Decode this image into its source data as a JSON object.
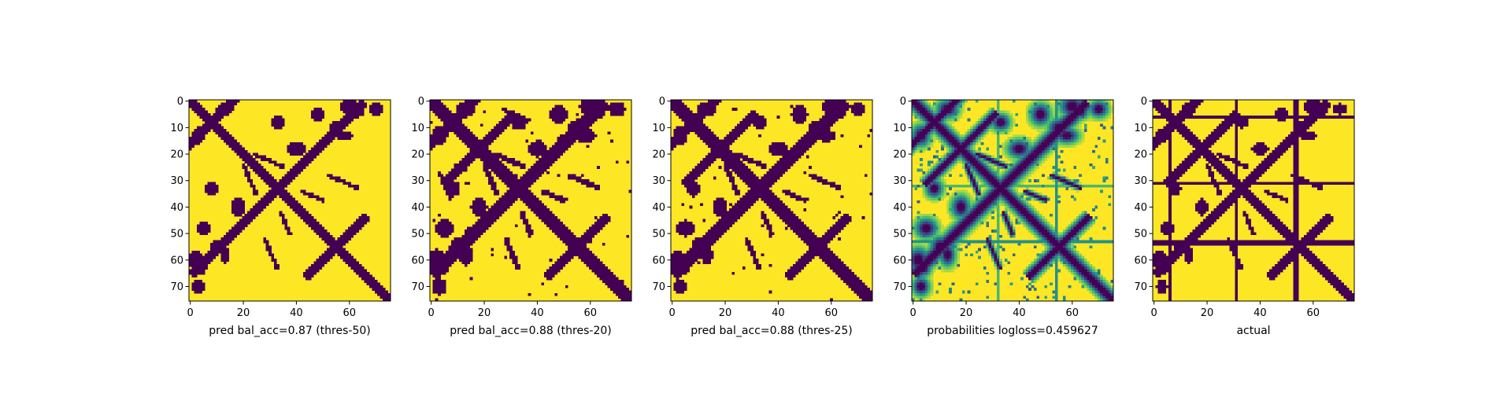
{
  "chart_data": [
    {
      "type": "heatmap",
      "title": "",
      "xlabel": "pred bal_acc=0.87 (thres-50)",
      "ylabel": "",
      "grid_size": 76,
      "xticks": [
        0,
        20,
        40,
        60
      ],
      "yticks": [
        0,
        10,
        20,
        30,
        40,
        50,
        60,
        70
      ],
      "value_type": "binary",
      "colormap": "viridis",
      "diagonal_width": 2.2,
      "arms": [
        [
          33,
          0,
          3.2
        ],
        [
          55,
          45,
          2.4
        ],
        [
          8,
          0,
          2.6
        ]
      ],
      "blobs": [
        [
          13,
          3,
          2.6,
          2.2
        ],
        [
          8,
          33,
          2.0,
          2.2
        ],
        [
          18,
          40,
          2.2,
          2.8
        ],
        [
          10,
          55,
          2.0,
          2.5
        ],
        [
          4,
          63,
          1.8,
          2.0
        ],
        [
          48,
          5,
          2.0,
          2.5
        ],
        [
          58,
          13,
          2.8,
          1.6
        ],
        [
          60,
          2,
          3.0,
          2.6
        ],
        [
          70,
          3,
          2.2,
          2.0
        ]
      ],
      "curves": [
        [
          22,
          30,
          2,
          1.0
        ],
        [
          38,
          44,
          4,
          1.0
        ],
        [
          40,
          48,
          12,
          1.0
        ]
      ],
      "stripes": [],
      "noise": 0.0
    },
    {
      "type": "heatmap",
      "title": "",
      "xlabel": "pred bal_acc=0.88 (thres-20)",
      "ylabel": "",
      "grid_size": 76,
      "xticks": [
        0,
        20,
        40,
        60
      ],
      "yticks": [
        0,
        10,
        20,
        30,
        40,
        50,
        60,
        70
      ],
      "value_type": "binary",
      "colormap": "viridis",
      "diagonal_width": 2.8,
      "arms": [
        [
          33,
          0,
          3.8
        ],
        [
          55,
          45,
          3.0
        ],
        [
          8,
          0,
          3.0
        ],
        [
          18,
          6,
          3.0
        ]
      ],
      "blobs": [
        [
          13,
          3,
          3.0,
          2.6
        ],
        [
          8,
          33,
          2.4,
          2.6
        ],
        [
          18,
          40,
          2.6,
          3.2
        ],
        [
          10,
          55,
          2.6,
          3.0
        ],
        [
          4,
          63,
          2.0,
          2.4
        ],
        [
          48,
          5,
          3.0,
          3.0
        ],
        [
          58,
          13,
          3.4,
          2.2
        ],
        [
          60,
          2,
          3.4,
          3.0
        ],
        [
          70,
          3,
          2.6,
          2.4
        ],
        [
          50,
          14,
          2.0,
          1.6
        ]
      ],
      "curves": [
        [
          22,
          30,
          2,
          1.2
        ],
        [
          38,
          44,
          4,
          1.2
        ],
        [
          40,
          48,
          12,
          1.2
        ],
        [
          15,
          22,
          12,
          1.0
        ]
      ],
      "stripes": [
        [
          53,
          "h",
          0.5
        ],
        [
          54,
          "v",
          0.5
        ]
      ],
      "noise": 0.02
    },
    {
      "type": "heatmap",
      "title": "",
      "xlabel": "pred bal_acc=0.88 (thres-25)",
      "ylabel": "",
      "grid_size": 76,
      "xticks": [
        0,
        20,
        40,
        60
      ],
      "yticks": [
        0,
        10,
        20,
        30,
        40,
        50,
        60,
        70
      ],
      "value_type": "binary",
      "colormap": "viridis",
      "diagonal_width": 2.6,
      "arms": [
        [
          33,
          0,
          3.6
        ],
        [
          55,
          45,
          2.8
        ],
        [
          8,
          0,
          2.8
        ],
        [
          18,
          6,
          2.6
        ]
      ],
      "blobs": [
        [
          13,
          3,
          2.8,
          2.4
        ],
        [
          8,
          33,
          2.2,
          2.4
        ],
        [
          18,
          40,
          2.4,
          3.0
        ],
        [
          10,
          55,
          2.4,
          2.8
        ],
        [
          4,
          63,
          1.9,
          2.2
        ],
        [
          48,
          5,
          2.6,
          2.8
        ],
        [
          58,
          13,
          3.0,
          2.0
        ],
        [
          60,
          2,
          3.2,
          2.8
        ],
        [
          70,
          3,
          2.4,
          2.2
        ]
      ],
      "curves": [
        [
          22,
          30,
          2,
          1.1
        ],
        [
          38,
          44,
          4,
          1.1
        ],
        [
          40,
          48,
          12,
          1.1
        ]
      ],
      "stripes": [
        [
          53,
          "h",
          0.45
        ],
        [
          54,
          "v",
          0.45
        ]
      ],
      "noise": 0.015
    },
    {
      "type": "heatmap",
      "title": "",
      "xlabel": "probabilities logloss=0.459627",
      "ylabel": "",
      "grid_size": 76,
      "xticks": [
        0,
        20,
        40,
        60
      ],
      "yticks": [
        0,
        10,
        20,
        30,
        40,
        50,
        60,
        70
      ],
      "value_type": "continuous",
      "colormap": "viridis",
      "diagonal_width": 2.6,
      "arms": [
        [
          33,
          0,
          3.6
        ],
        [
          55,
          45,
          2.8
        ],
        [
          8,
          0,
          2.8
        ],
        [
          18,
          6,
          2.6
        ]
      ],
      "blobs": [
        [
          13,
          3,
          2.8,
          2.4
        ],
        [
          8,
          33,
          2.2,
          2.4
        ],
        [
          18,
          40,
          2.4,
          3.0
        ],
        [
          10,
          55,
          2.4,
          2.8
        ],
        [
          4,
          63,
          1.9,
          2.2
        ],
        [
          48,
          5,
          2.6,
          2.8
        ],
        [
          58,
          13,
          3.0,
          2.0
        ],
        [
          60,
          2,
          3.2,
          2.8
        ],
        [
          70,
          3,
          2.4,
          2.2
        ]
      ],
      "curves": [
        [
          22,
          30,
          2,
          1.1
        ],
        [
          38,
          44,
          4,
          1.1
        ],
        [
          40,
          48,
          12,
          1.1
        ]
      ],
      "stripes": [
        [
          53,
          "h",
          0.45
        ],
        [
          54,
          "v",
          0.45
        ],
        [
          32,
          "v",
          0.3
        ],
        [
          32,
          "h",
          0.3
        ]
      ],
      "noise": 0.06
    },
    {
      "type": "heatmap",
      "title": "",
      "xlabel": "actual",
      "ylabel": "",
      "grid_size": 76,
      "xticks": [
        0,
        20,
        40,
        60
      ],
      "yticks": [
        0,
        10,
        20,
        30,
        40,
        50,
        60,
        70
      ],
      "value_type": "binary",
      "colormap": "viridis",
      "diagonal_width": 2.2,
      "arms": [
        [
          33,
          0,
          3.2
        ],
        [
          55,
          45,
          2.6
        ],
        [
          8,
          0,
          2.4
        ],
        [
          18,
          6,
          2.4
        ]
      ],
      "blobs": [
        [
          13,
          3,
          2.2,
          2.0
        ],
        [
          8,
          33,
          1.8,
          2.0
        ],
        [
          18,
          40,
          2.0,
          2.6
        ],
        [
          10,
          55,
          2.0,
          2.4
        ],
        [
          4,
          63,
          1.6,
          2.0
        ],
        [
          48,
          5,
          2.0,
          2.4
        ],
        [
          58,
          13,
          2.6,
          1.6
        ],
        [
          60,
          2,
          2.8,
          2.4
        ],
        [
          70,
          3,
          2.0,
          1.8
        ]
      ],
      "curves": [
        [
          22,
          30,
          2,
          1.0
        ],
        [
          38,
          44,
          4,
          1.0
        ],
        [
          40,
          48,
          12,
          1.0
        ]
      ],
      "stripes": [
        [
          6,
          "h",
          1.0
        ],
        [
          6,
          "v",
          1.0
        ],
        [
          31,
          "h",
          1.0
        ],
        [
          31,
          "v",
          1.0
        ],
        [
          53,
          "h",
          1.0
        ],
        [
          53,
          "v",
          1.0
        ],
        [
          54,
          "h",
          1.0
        ],
        [
          54,
          "v",
          1.0
        ]
      ],
      "noise": 0.0
    }
  ],
  "colors": {
    "low": "#440154",
    "mid_dark": "#3b528b",
    "mid": "#21918c",
    "mid_light": "#5ec962",
    "high": "#fde725",
    "axis": "#000000",
    "background": "#ffffff"
  }
}
